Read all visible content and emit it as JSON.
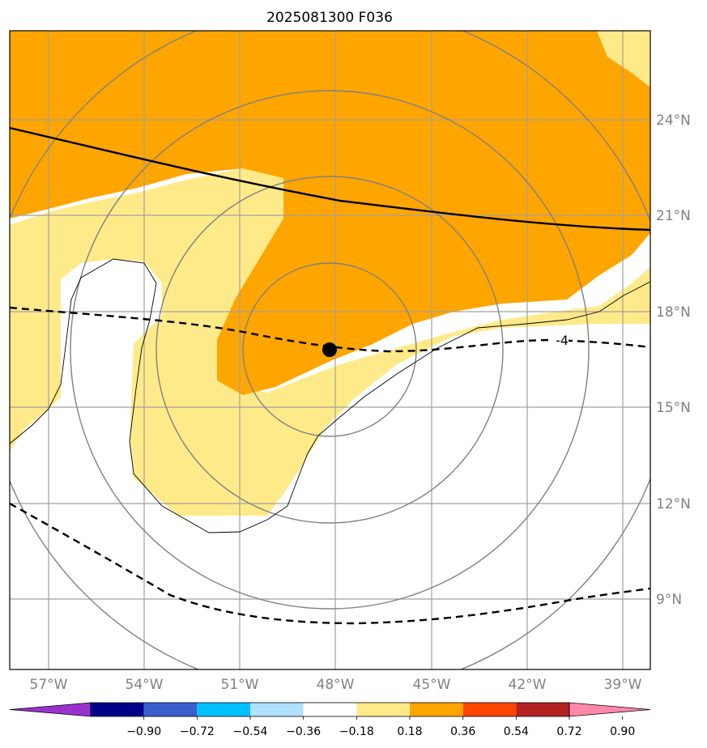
{
  "title": "2025081300 F036",
  "colors": {
    "low_positive": "#ffea8a",
    "mid_positive": "#ffa500",
    "grid": "#a0a0a0",
    "ring": "#808080",
    "track": "#000000"
  },
  "axes": {
    "lon_ticks": [
      "57°W",
      "54°W",
      "51°W",
      "48°W",
      "45°W",
      "42°W",
      "39°W"
    ],
    "lat_ticks": [
      "24°N",
      "21°N",
      "18°N",
      "15°N",
      "12°N",
      "9°N"
    ]
  },
  "contour_label": "-4",
  "storm_center": {
    "lon": -48.1,
    "lat": 16.8
  },
  "colorbar": {
    "ticks": [
      "−0.90",
      "−0.72",
      "−0.54",
      "−0.36",
      "−0.18",
      "0.18",
      "0.36",
      "0.54",
      "0.72",
      "0.90"
    ],
    "colors": [
      "#9932cc",
      "#00008b",
      "#3a5fcd",
      "#00bfff",
      "#b0e0ff",
      "#ffffff",
      "#ffea8a",
      "#ffa500",
      "#ff4500",
      "#b22222",
      "#ff88aa"
    ]
  }
}
